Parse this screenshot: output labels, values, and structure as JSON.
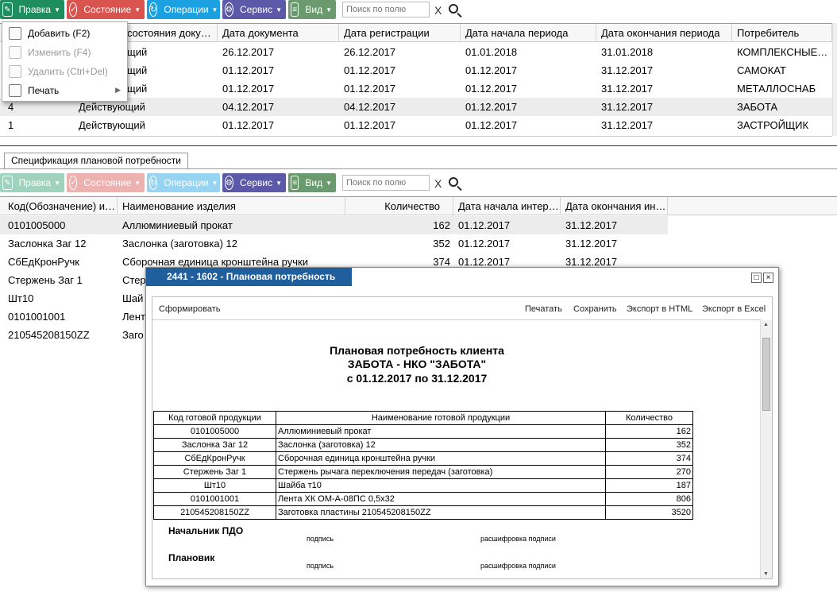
{
  "top_toolbar": {
    "edit": "Правка",
    "state": "Состояние",
    "operations": "Операции",
    "service": "Сервис",
    "view": "Вид",
    "search_placeholder": "Поиск по полю",
    "clear": "X"
  },
  "edit_menu": {
    "add": "Добавить (F2)",
    "change": "Изменить (F4)",
    "delete": "Удалить (Ctrl+Del)",
    "print": "Печать"
  },
  "main_grid": {
    "columns": [
      "",
      "состояния доку…",
      "Дата документа",
      "Дата регистрации",
      "Дата начала периода",
      "Дата окончания периода",
      "Потребитель"
    ],
    "rows": [
      [
        "",
        "щий",
        "26.12.2017",
        "26.12.2017",
        "01.01.2018",
        "31.01.2018",
        "КОМПЛЕКСНЫЕ…"
      ],
      [
        "",
        "щий",
        "01.12.2017",
        "01.12.2017",
        "01.12.2017",
        "31.12.2017",
        "САМОКАТ"
      ],
      [
        "",
        "щий",
        "01.12.2017",
        "01.12.2017",
        "01.12.2017",
        "31.12.2017",
        "МЕТАЛЛОСНАБ"
      ],
      [
        "4",
        "Действующий",
        "04.12.2017",
        "04.12.2017",
        "01.12.2017",
        "31.12.2017",
        "ЗАБОТА"
      ],
      [
        "1",
        "Действующий",
        "01.12.2017",
        "01.12.2017",
        "01.12.2017",
        "31.12.2017",
        "ЗАСТРОЙЩИК"
      ]
    ]
  },
  "spec_tab": "Спецификация плановой потребности",
  "spec_toolbar": {
    "edit": "Правка",
    "state": "Состояние",
    "operations": "Операции",
    "service": "Сервис",
    "view": "Вид",
    "search_placeholder": "Поиск по полю",
    "clear": "X"
  },
  "spec_grid": {
    "columns": [
      "Код(Обозначение) и…",
      "Наименование изделия",
      "Количество",
      "Дата начала интер…",
      "Дата окончания ин…"
    ],
    "rows": [
      [
        "0101005000",
        "Аллюминиевый прокат",
        "162",
        "01.12.2017",
        "31.12.2017"
      ],
      [
        "Заслонка Заг 12",
        "Заслонка (заготовка) 12",
        "352",
        "01.12.2017",
        "31.12.2017"
      ],
      [
        "СбЕдКронРучк",
        "Сборочная единица кронштейна ручки",
        "374",
        "01.12.2017",
        "31.12.2017"
      ],
      [
        "Стержень Заг 1",
        "Стер",
        "",
        "",
        ""
      ],
      [
        "Шт10",
        "Шай",
        "",
        "",
        ""
      ],
      [
        "0101001001",
        "Лент",
        "",
        "",
        ""
      ],
      [
        "210545208150ZZ",
        "Заго",
        "",
        "",
        ""
      ]
    ]
  },
  "dialog": {
    "title": "2441 - 1602 - Плановая потребность",
    "maximize": "□",
    "close": "×",
    "toolbar": {
      "form": "Сформировать",
      "print": "Печатать",
      "save": "Сохранить",
      "export_html": "Экспорт в HTML",
      "export_excel": "Экспорт в Excel"
    },
    "report": {
      "title1": "Плановая потребность клиента",
      "title2": "ЗАБОТА - НКО \"ЗАБОТА\"",
      "title3": "с 01.12.2017 по 31.12.2017",
      "columns": [
        "Код готовой продукции",
        "Наименование готовой продукции",
        "Количество"
      ],
      "rows": [
        [
          "0101005000",
          "Аллюминиевый прокат",
          "162"
        ],
        [
          "Заслонка Заг 12",
          "Заслонка (заготовка) 12",
          "352"
        ],
        [
          "СбЕдКронРучк",
          "Сборочная единица кронштейна ручки",
          "374"
        ],
        [
          "Стержень Заг 1",
          "Стержень рычага переключения передач (заготовка)",
          "270"
        ],
        [
          "Шт10",
          "Шайба т10",
          "187"
        ],
        [
          "0101001001",
          "Лента ХК ОМ-А-08ПС 0,5х32",
          "806"
        ],
        [
          "210545208150ZZ",
          "Заготовка пластины 210545208150ZZ",
          "3520"
        ]
      ],
      "sig1": "Начальник ПДО",
      "sig2": "Плановик",
      "sign": "подпись",
      "decode": "расшифровка подписи"
    }
  },
  "colors": {
    "edit": "#2e9e6e",
    "state": "#d9534f",
    "operations": "#1ba1e2",
    "service": "#5c5aa8",
    "view": "#6a9a6e",
    "dialog_title": "#1f5f9e"
  }
}
